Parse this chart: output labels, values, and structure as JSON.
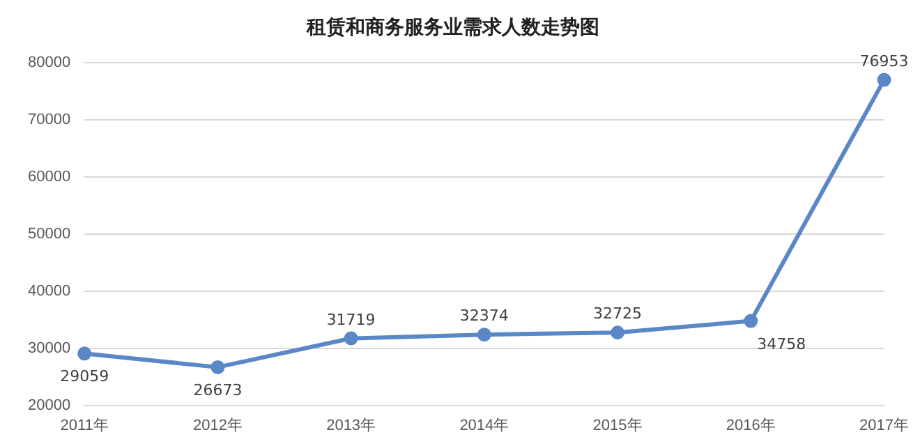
{
  "chart_data": {
    "type": "line",
    "title": "租赁和商务服务业需求人数走势图",
    "categories": [
      "2011年",
      "2012年",
      "2013年",
      "2014年",
      "2015年",
      "2016年",
      "2017年"
    ],
    "series": [
      {
        "color": "#5a87c6",
        "values": [
          29059,
          26673,
          31719,
          32374,
          32725,
          34758,
          76953
        ]
      }
    ],
    "ylim": [
      20000,
      80000
    ],
    "yticks": [
      20000,
      30000,
      40000,
      50000,
      60000,
      70000,
      80000
    ],
    "grid": "y",
    "legend": false,
    "marker": "circle",
    "data_labels": true
  }
}
